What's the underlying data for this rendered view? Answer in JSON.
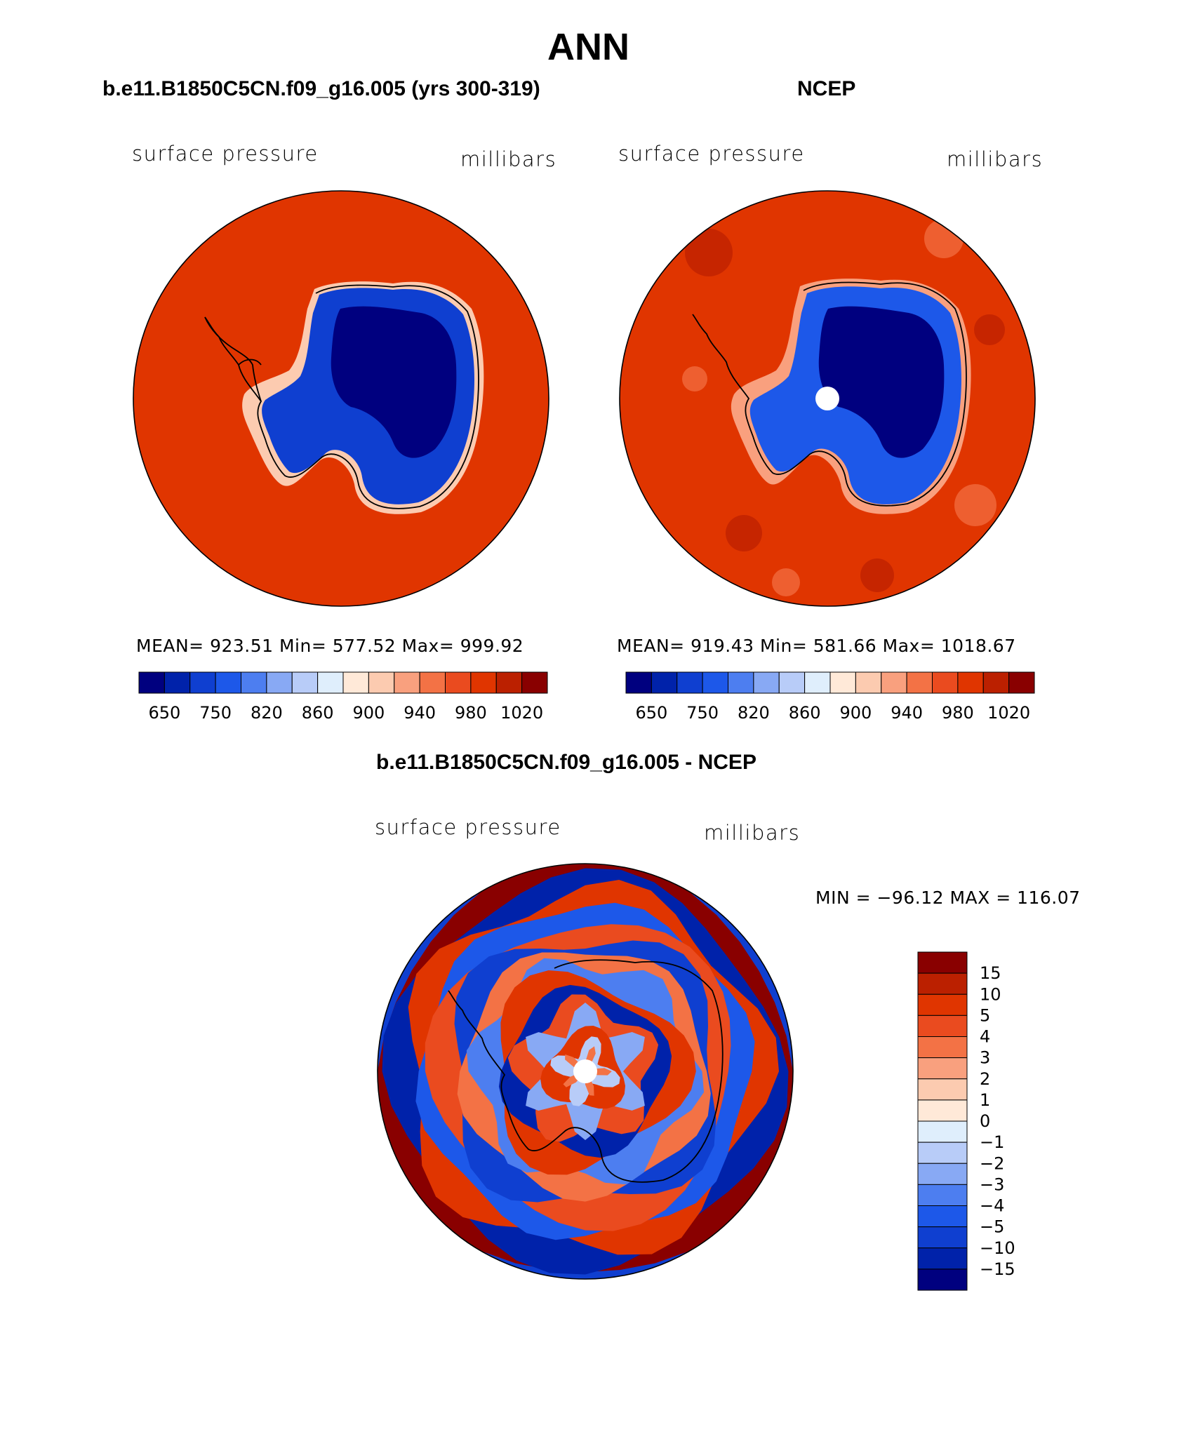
{
  "page_title": "ANN",
  "panels": [
    {
      "title": "b.e11.B1850C5CN.f09_g16.005 (yrs 300-319)",
      "left_label": "surface pressure",
      "right_label": "millibars",
      "stats": "MEAN= 923.51   Min= 577.52   Max= 999.92"
    },
    {
      "title": "NCEP",
      "left_label": "surface pressure",
      "right_label": "millibars",
      "stats": "MEAN= 919.43   Min= 581.66   Max= 1018.67"
    },
    {
      "title": "b.e11.B1850C5CN.f09_g16.005 - NCEP",
      "left_label": "surface pressure",
      "right_label": "millibars",
      "stats": "MIN = −96.12 MAX = 116.07"
    }
  ],
  "colors": {
    "abs_scale": [
      "#00007f",
      "#0022aa",
      "#0f3fd0",
      "#1d58e9",
      "#4d7ef0",
      "#88a9f4",
      "#b8ccf8",
      "#dfeefc",
      "#ffe9d8",
      "#fccbb0",
      "#f9a07e",
      "#f37245",
      "#ea4b1f",
      "#e03500",
      "#bb2000",
      "#890000"
    ],
    "diff_scale": [
      "#00007f",
      "#0022aa",
      "#0f3fd0",
      "#1d58e9",
      "#4d7ef0",
      "#88a9f4",
      "#b8ccf8",
      "#dfeefc",
      "#ffe9d8",
      "#fccbb0",
      "#f9a07e",
      "#f37245",
      "#ea4b1f",
      "#e03500",
      "#bb2000",
      "#890000"
    ],
    "ocean_fill": "#e03500",
    "diff_red": "#e03500",
    "diff_blue": "#0f3fd0"
  },
  "chart_data": [
    {
      "type": "heatmap",
      "title": "b.e11.B1850C5CN.f09_g16.005 (yrs 300-319)",
      "variable": "surface pressure",
      "units": "millibars",
      "projection": "south polar stereographic",
      "colorbar_levels": [
        650,
        700,
        750,
        800,
        820,
        840,
        860,
        880,
        900,
        920,
        940,
        960,
        980,
        1000,
        1020
      ],
      "colorbar_tick_labels": [
        "650",
        "750",
        "820",
        "860",
        "900",
        "940",
        "980",
        "1020"
      ],
      "mean": 923.51,
      "min": 577.52,
      "max": 999.92
    },
    {
      "type": "heatmap",
      "title": "NCEP",
      "variable": "surface pressure",
      "units": "millibars",
      "projection": "south polar stereographic",
      "colorbar_levels": [
        650,
        700,
        750,
        800,
        820,
        840,
        860,
        880,
        900,
        920,
        940,
        960,
        980,
        1000,
        1020
      ],
      "colorbar_tick_labels": [
        "650",
        "750",
        "820",
        "860",
        "900",
        "940",
        "980",
        "1020"
      ],
      "mean": 919.43,
      "min": 581.66,
      "max": 1018.67
    },
    {
      "type": "heatmap",
      "title": "b.e11.B1850C5CN.f09_g16.005 - NCEP",
      "variable": "surface pressure",
      "units": "millibars",
      "projection": "south polar stereographic",
      "colorbar_levels": [
        -15,
        -10,
        -5,
        -4,
        -3,
        -2,
        -1,
        0,
        1,
        2,
        3,
        4,
        5,
        10,
        15
      ],
      "colorbar_tick_labels": [
        "15",
        "10",
        "5",
        "4",
        "3",
        "2",
        "1",
        "0",
        "−1",
        "−2",
        "−3",
        "−4",
        "−5",
        "−10",
        "−15"
      ],
      "min": -96.12,
      "max": 116.07
    }
  ]
}
